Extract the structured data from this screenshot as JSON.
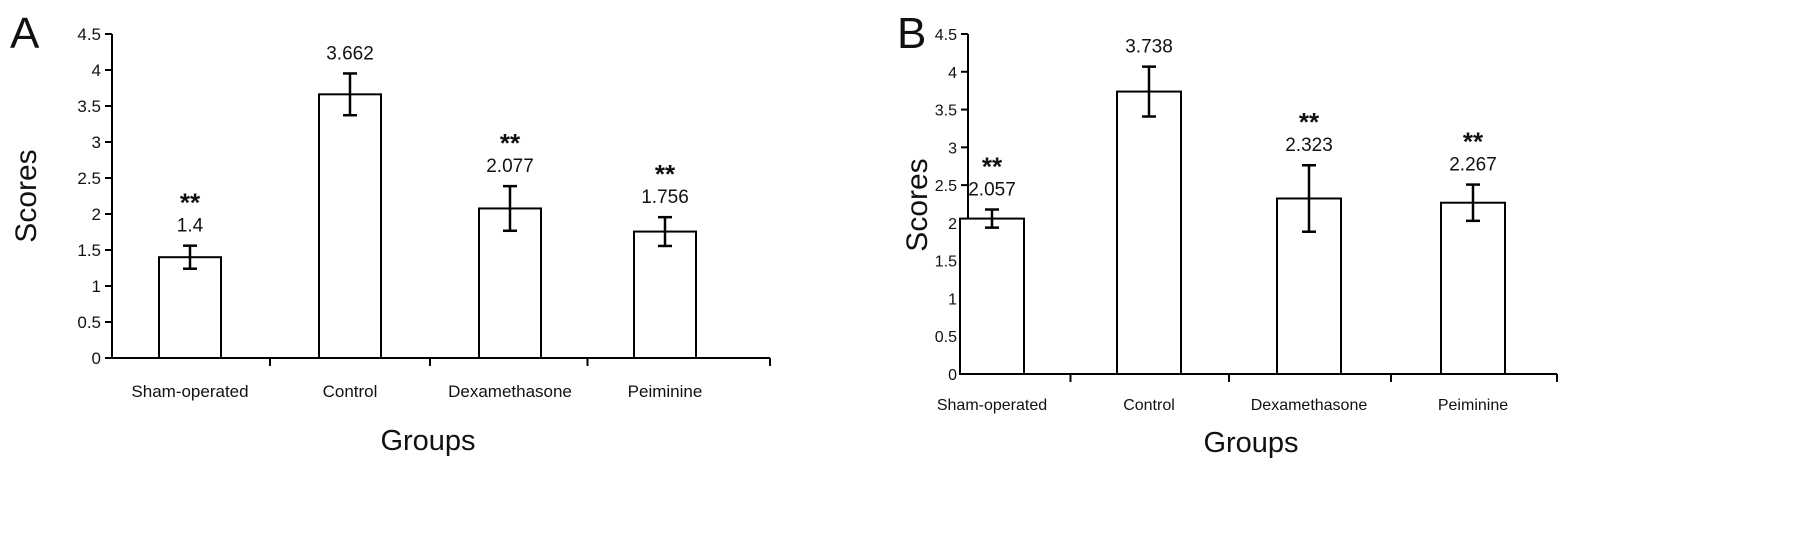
{
  "chart_data": [
    {
      "type": "bar",
      "panel_label": "A",
      "categories": [
        "Sham-operated",
        "Control",
        "Dexamethasone",
        "Peiminine"
      ],
      "values": [
        1.4,
        3.662,
        2.077,
        1.756
      ],
      "errors": [
        0.16,
        0.29,
        0.31,
        0.2
      ],
      "value_labels": [
        "1.4",
        "3.662",
        "2.077",
        "1.756"
      ],
      "significance": [
        "**",
        "",
        "**",
        "**"
      ],
      "xlabel": "Groups",
      "ylabel": "Scores",
      "ylim": [
        0,
        4.5
      ],
      "yticks": [
        "0",
        "0.5",
        "1",
        "1.5",
        "2",
        "2.5",
        "3",
        "3.5",
        "4",
        "4.5"
      ],
      "grid": false,
      "bar_fill": "#ffffff",
      "bar_stroke": "#000000"
    },
    {
      "type": "bar",
      "panel_label": "B",
      "categories": [
        "Sham-operated",
        "Control",
        "Dexamethasone",
        "Peiminine"
      ],
      "values": [
        2.057,
        3.738,
        2.323,
        2.267
      ],
      "errors": [
        0.12,
        0.33,
        0.44,
        0.24
      ],
      "value_labels": [
        "2.057",
        "3.738",
        "2.323",
        "2.267"
      ],
      "significance": [
        "**",
        "",
        "**",
        "**"
      ],
      "xlabel": "Groups",
      "ylabel": "Scores",
      "ylim": [
        0,
        4.5
      ],
      "yticks": [
        "0",
        "0.5",
        "1",
        "1.5",
        "2",
        "2.5",
        "3",
        "3.5",
        "4",
        "4.5"
      ],
      "grid": false,
      "bar_fill": "#ffffff",
      "bar_stroke": "#000000"
    }
  ]
}
